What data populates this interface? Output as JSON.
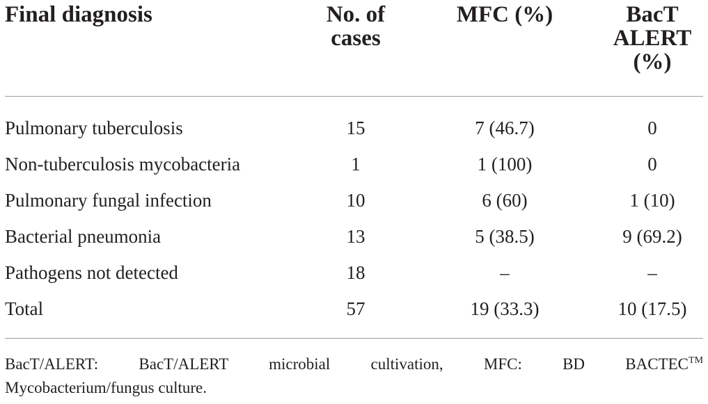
{
  "table": {
    "headers": {
      "diagnosis": "Final diagnosis",
      "cases_line1": "No. of",
      "cases_line2": "cases",
      "mfc": "MFC (%)",
      "bact_line1": "BacT",
      "bact_line2": "ALERT",
      "bact_line3": "(%)"
    },
    "rows": [
      {
        "diagnosis": "Pulmonary tuberculosis",
        "cases": "15",
        "mfc": "7 (46.7)",
        "bact": "0"
      },
      {
        "diagnosis": "Non-tuberculosis mycobacteria",
        "cases": "1",
        "mfc": "1 (100)",
        "bact": "0"
      },
      {
        "diagnosis": "Pulmonary fungal infection",
        "cases": "10",
        "mfc": "6 (60)",
        "bact": "1 (10)"
      },
      {
        "diagnosis": "Bacterial pneumonia",
        "cases": "13",
        "mfc": "5 (38.5)",
        "bact": "9 (69.2)"
      },
      {
        "diagnosis": "Pathogens not detected",
        "cases": "18",
        "mfc": "–",
        "bact": "–"
      },
      {
        "diagnosis": "Total",
        "cases": "57",
        "mfc": "19 (33.3)",
        "bact": "10 (17.5)"
      }
    ]
  },
  "footnote": {
    "w1": "BacT/ALERT:",
    "w2": "BacT/ALERT",
    "w3": "microbial",
    "w4": "cultivation,",
    "w5": "MFC:",
    "w6": "BD",
    "w7": "BACTEC",
    "tm": "TM",
    "line2": "Mycobacterium/fungus culture."
  }
}
